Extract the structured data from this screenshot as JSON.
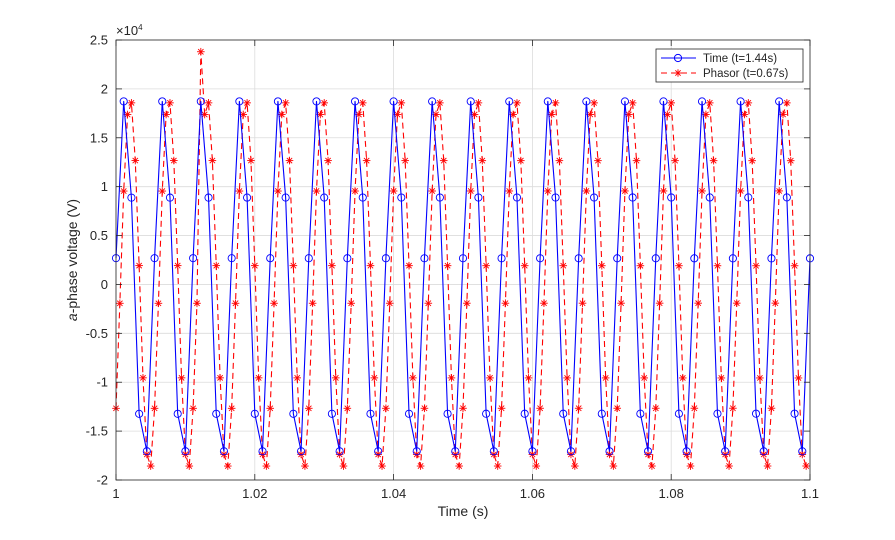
{
  "chart_data": {
    "type": "line",
    "title": "",
    "xlabel": "Time (s)",
    "ylabel_italic": "a",
    "ylabel_rest": "-phase  voltage  (V)",
    "y_exponent_label": "×10",
    "y_exponent_power": "4",
    "xlim": [
      1,
      1.1
    ],
    "ylim": [
      -20000,
      25000
    ],
    "xticks": [
      1,
      1.02,
      1.04,
      1.06,
      1.08,
      1.1
    ],
    "xtick_labels": [
      "1",
      "1.02",
      "1.04",
      "1.06",
      "1.08",
      "1.1"
    ],
    "yticks": [
      -20000,
      -15000,
      -10000,
      -5000,
      0,
      5000,
      10000,
      15000,
      20000,
      25000
    ],
    "ytick_labels": [
      "-2",
      "-1.5",
      "-1",
      "-0.5",
      "0",
      "0.5",
      "1",
      "1.5",
      "2",
      "2.5"
    ],
    "grid": true,
    "legend_position": "top-right",
    "series": [
      {
        "name": "Time (t=1.44s)",
        "color": "#0000ff",
        "line_style": "solid",
        "marker": "circle",
        "amplitude": 19000,
        "frequency_hz": 180,
        "phase_rad": 0.142,
        "sample_interval_s": 0.0011111,
        "x_start": 1.0,
        "x_end": 1.1
      },
      {
        "name": "Phasor (t=0.67s)",
        "color": "#ff0000",
        "line_style": "dashed",
        "marker": "asterisk",
        "amplitude": 19000,
        "frequency_hz": 180,
        "phase_rad": -0.73,
        "sample_interval_s": 0.00055556,
        "x_start": 1.0,
        "x_end": 1.1,
        "outlier": {
          "x": 1.0125,
          "y": 23800
        }
      }
    ]
  }
}
